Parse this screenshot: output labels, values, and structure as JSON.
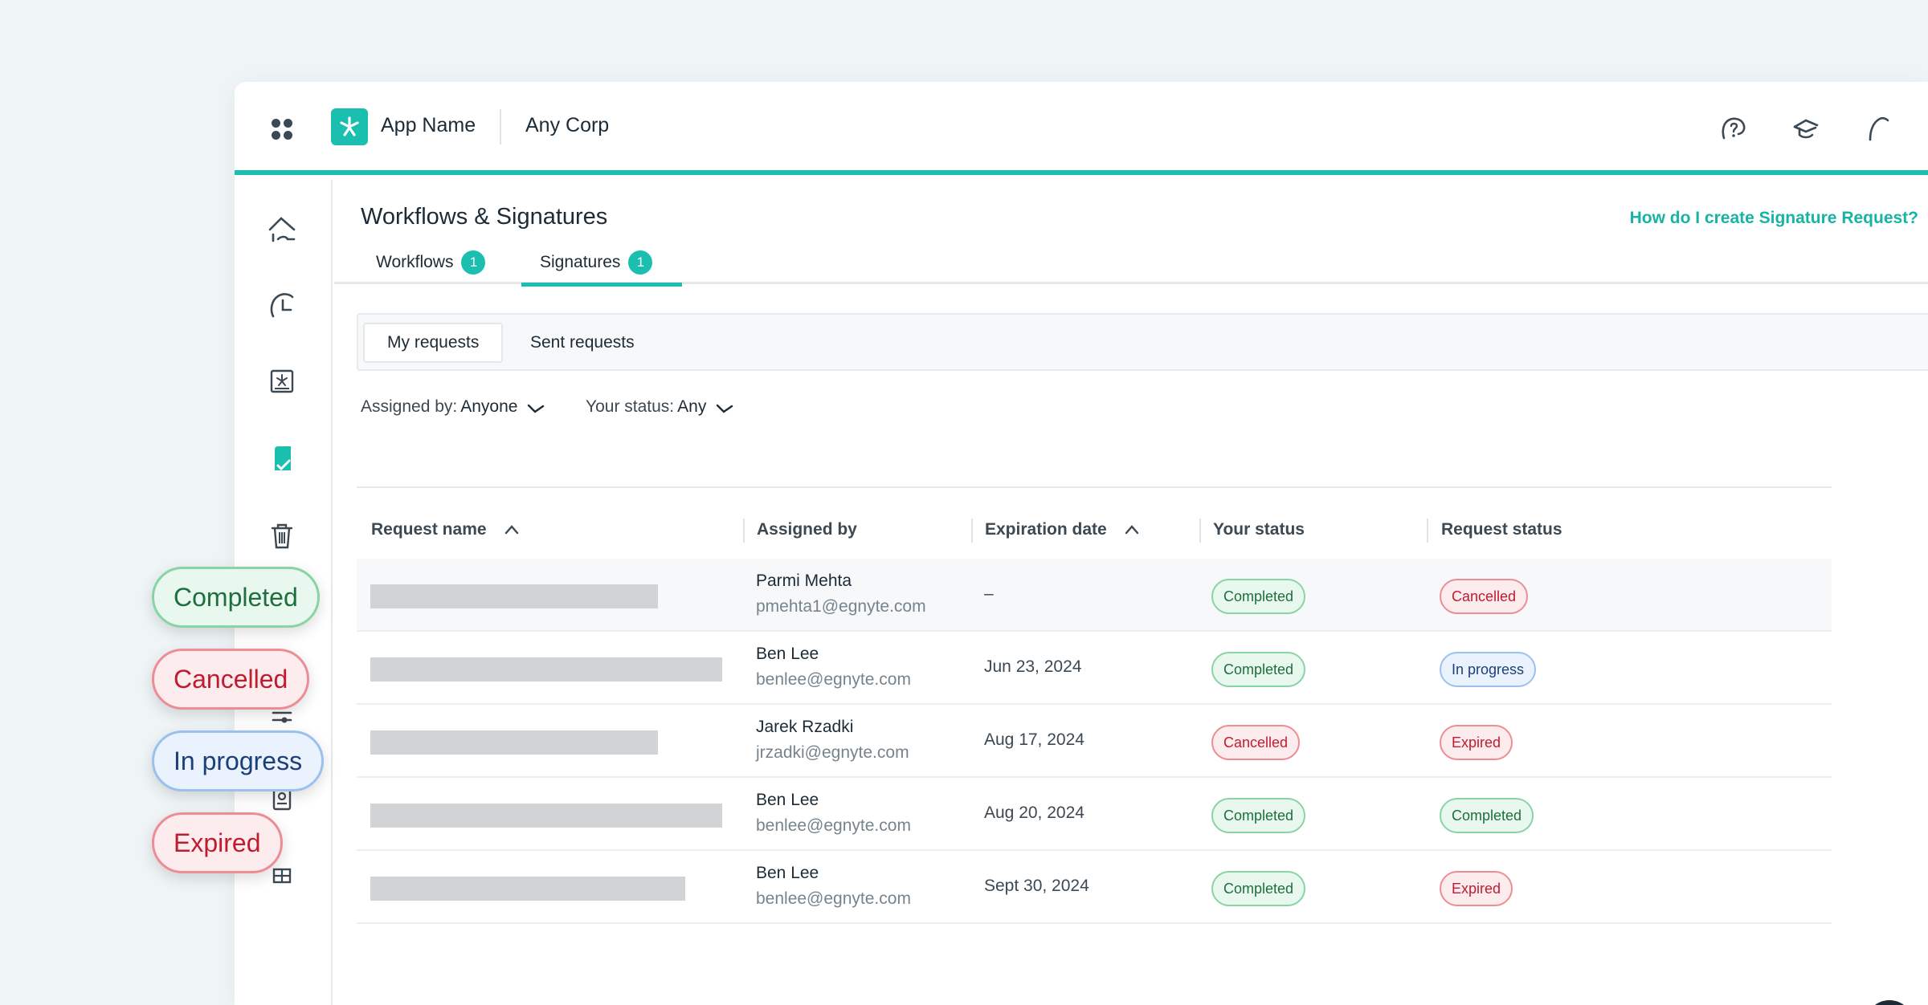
{
  "app": {
    "name": "App Name",
    "corp": "Any Corp"
  },
  "page": {
    "title": "Workflows & Signatures",
    "help_link": "How do I create Signature Request?",
    "tabs": [
      {
        "label": "Workflows",
        "count": "1"
      },
      {
        "label": "Signatures",
        "count": "1",
        "active": true
      }
    ],
    "subtabs": [
      {
        "label": "My requests",
        "active": true
      },
      {
        "label": "Sent requests"
      }
    ],
    "filters": [
      {
        "label": "Assigned by:",
        "value": "Anyone"
      },
      {
        "label": "Your status:",
        "value": "Any"
      }
    ]
  },
  "table": {
    "columns": [
      "Request name",
      "Assigned by",
      "Expiration date",
      "Your status",
      "Request status"
    ],
    "rows": [
      {
        "name": "Parmi Mehta",
        "email": "pmehta1@egnyte.com",
        "date": "–",
        "your_status": "Completed",
        "request_status": "Cancelled"
      },
      {
        "name": "Ben Lee",
        "email": "benlee@egnyte.com",
        "date": "Jun 23, 2024",
        "your_status": "Completed",
        "request_status": "In progress"
      },
      {
        "name": "Jarek Rzadki",
        "email": "jrzadki@egnyte.com",
        "date": "Aug 17, 2024",
        "your_status": "Cancelled",
        "request_status": "Expired"
      },
      {
        "name": "Ben Lee",
        "email": "benlee@egnyte.com",
        "date": "Aug 20, 2024",
        "your_status": "Completed",
        "request_status": "Completed"
      },
      {
        "name": "Ben Lee",
        "email": "benlee@egnyte.com",
        "date": "Sept 30, 2024",
        "your_status": "Completed",
        "request_status": "Expired"
      }
    ]
  },
  "legend_badges": [
    "Completed",
    "Cancelled",
    "In progress",
    "Expired"
  ],
  "colors": {
    "accent": "#1bbfaf",
    "completed": "#1f6e3e",
    "cancelled": "#c01b2f",
    "in_progress": "#1c3f78",
    "expired": "#c01b2f"
  },
  "icons": {
    "top": [
      "help-icon",
      "learn-icon",
      "profile-icon"
    ],
    "sidebar": [
      "home-icon",
      "recent-icon",
      "files-icon",
      "signatures-icon",
      "trash-icon",
      "settings-icon",
      "reports-icon",
      "apps-icon"
    ]
  }
}
